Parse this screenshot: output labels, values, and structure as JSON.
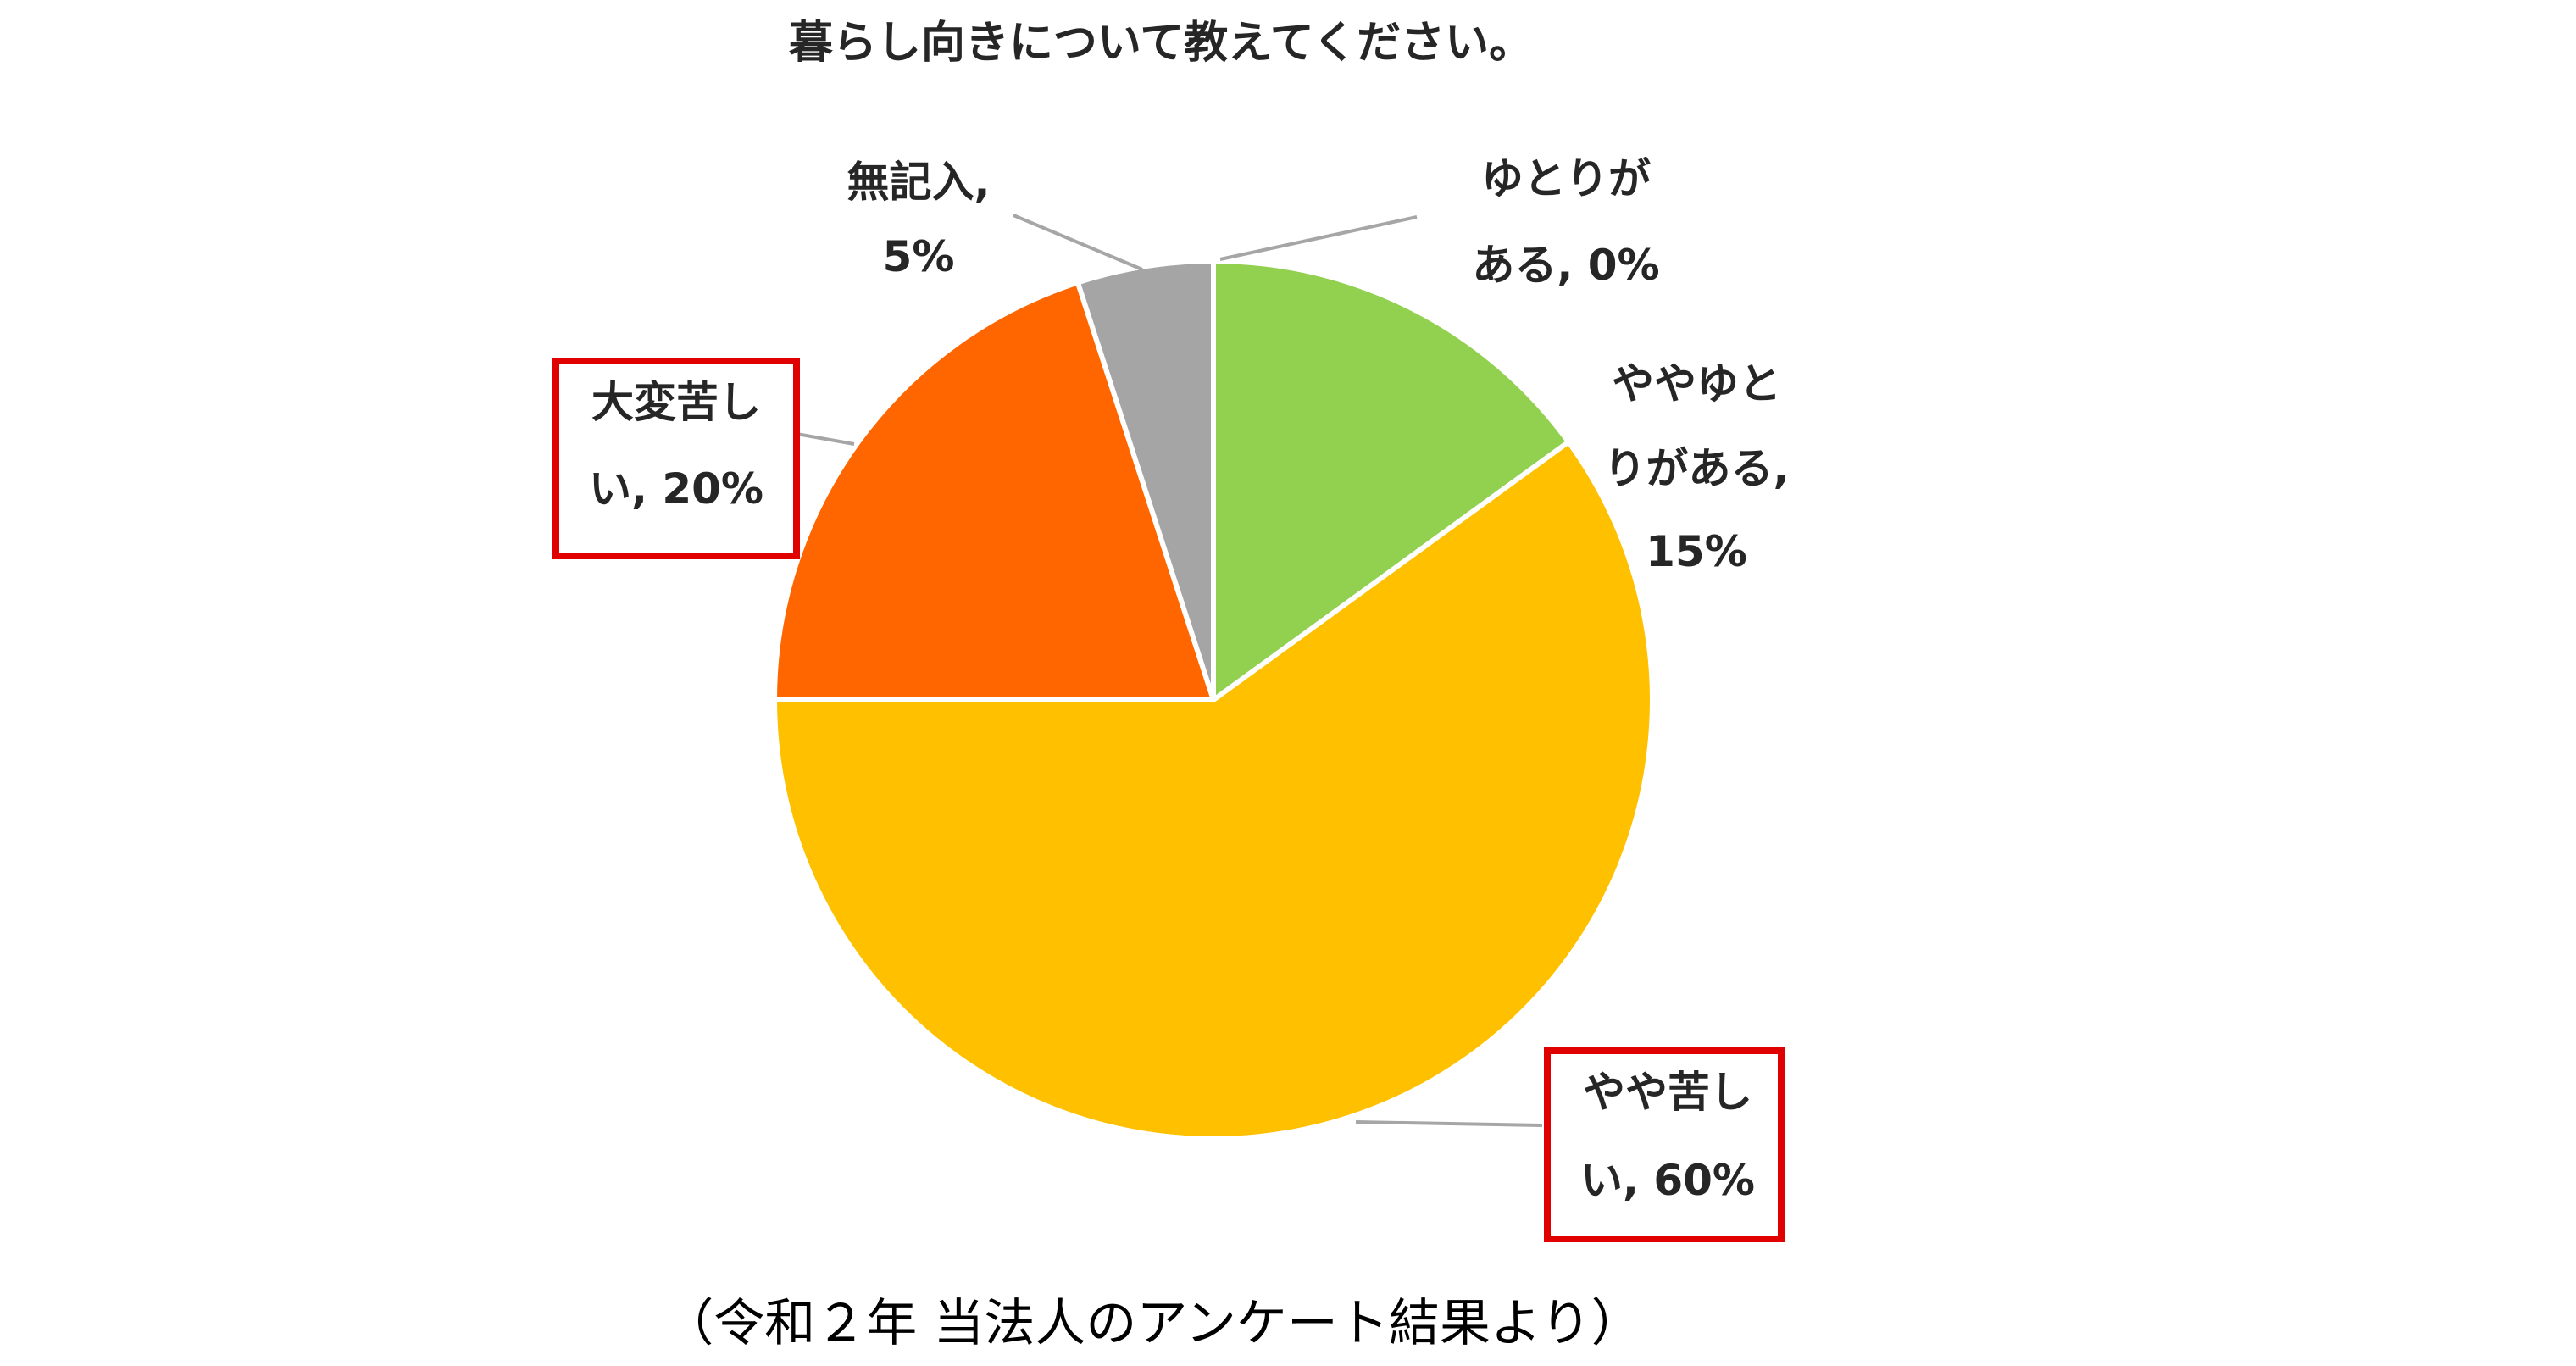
{
  "chart_data": {
    "type": "pie",
    "title": "暮らし向きについて教えてください。",
    "caption": "（令和２年 当法人のアンケート結果より）",
    "slices": [
      {
        "name": "ゆとりがある",
        "value": 0,
        "label_lines": [
          "ゆとりが",
          "ある, 0%"
        ],
        "color": "#92D050",
        "highlighted": false
      },
      {
        "name": "ややゆとりがある",
        "value": 15,
        "label_lines": [
          "ややゆと",
          "りがある,",
          "15%"
        ],
        "color": "#92D050",
        "highlighted": false
      },
      {
        "name": "やや苦しい",
        "value": 60,
        "label_lines": [
          "やや苦し",
          "い, 60%"
        ],
        "color": "#FFC000",
        "highlighted": true
      },
      {
        "name": "大変苦しい",
        "value": 20,
        "label_lines": [
          "大変苦し",
          "い, 20%"
        ],
        "color": "#FF6600",
        "highlighted": true
      },
      {
        "name": "無記入",
        "value": 5,
        "label_lines": [
          "無記入,",
          "5%"
        ],
        "color": "#A5A5A5",
        "highlighted": false
      }
    ],
    "start_angle_deg": 0,
    "direction": "clockwise",
    "highlight_color": "#E00000",
    "leader_line_color": "#A6A6A6",
    "slice_border_color": "#FFFFFF"
  }
}
